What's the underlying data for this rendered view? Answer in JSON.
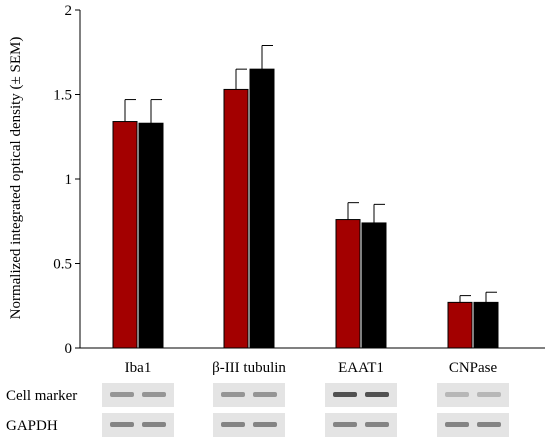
{
  "chart_data": {
    "type": "bar",
    "ylabel": "Normalized integrated optical density (± SEM)",
    "ylim": [
      0,
      2
    ],
    "yticks": [
      0,
      0.5,
      1,
      1.5,
      2
    ],
    "ytick_labels": [
      "0",
      "0.5",
      "1",
      "1.5",
      "2"
    ],
    "categories": [
      "Iba1",
      "β-III tubulin",
      "EAAT1",
      "CNPase"
    ],
    "series": [
      {
        "color": "#a30000",
        "values": [
          1.34,
          1.53,
          0.76,
          0.27
        ],
        "errors": [
          0.13,
          0.12,
          0.1,
          0.04
        ]
      },
      {
        "color": "#000000",
        "values": [
          1.33,
          1.65,
          0.74,
          0.27
        ],
        "errors": [
          0.14,
          0.14,
          0.11,
          0.06
        ]
      }
    ],
    "grid": false,
    "legend": "none"
  },
  "blot": {
    "row_labels": [
      "Cell marker",
      "GAPDH"
    ],
    "band_strength": [
      [
        0.45,
        0.45,
        0.85,
        0.25
      ],
      [
        0.55,
        0.55,
        0.55,
        0.55
      ]
    ]
  }
}
